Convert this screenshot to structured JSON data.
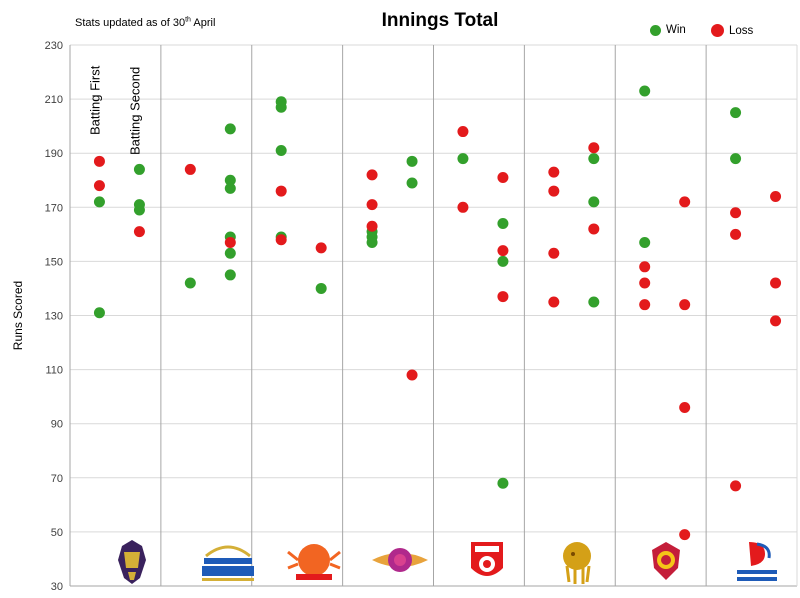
{
  "note": "Stats updated as of 30th April",
  "title": "Innings Total",
  "legend": [
    {
      "label": "Win",
      "color": "#33A02C"
    },
    {
      "label": "Loss",
      "color": "#E31A1C"
    }
  ],
  "column_labels": [
    "Batting First",
    "Batting Second"
  ],
  "chart_data": {
    "type": "scatter",
    "title": "Innings Total",
    "ylabel": "Runs Scored",
    "xlabel": "",
    "ylim": [
      30,
      230
    ],
    "yticks": [
      30,
      50,
      70,
      90,
      110,
      130,
      150,
      170,
      190,
      210,
      230
    ],
    "grid": true,
    "legend_position": "top-right",
    "teams": [
      {
        "logo": "KKR",
        "batting_first": {
          "win": [
            172,
            131
          ],
          "loss": [
            187,
            178
          ]
        },
        "batting_second": {
          "win": [
            184,
            171,
            169
          ],
          "loss": [
            161
          ]
        }
      },
      {
        "logo": "MI",
        "batting_first": {
          "win": [
            142
          ],
          "loss": [
            184
          ]
        },
        "batting_second": {
          "win": [
            199,
            180,
            177,
            159,
            153,
            145
          ],
          "loss": [
            157
          ]
        }
      },
      {
        "logo": "SRH",
        "batting_first": {
          "win": [
            209,
            207,
            191,
            159
          ],
          "loss": [
            176,
            158
          ]
        },
        "batting_second": {
          "win": [
            140
          ],
          "loss": [
            155
          ]
        }
      },
      {
        "logo": "RPS",
        "batting_first": {
          "win": [
            161,
            159,
            157
          ],
          "loss": [
            182,
            171,
            163
          ]
        },
        "batting_second": {
          "win": [
            187,
            179
          ],
          "loss": [
            108
          ]
        }
      },
      {
        "logo": "KXIP",
        "batting_first": {
          "win": [
            188
          ],
          "loss": [
            198,
            170
          ]
        },
        "batting_second": {
          "win": [
            164,
            150,
            68
          ],
          "loss": [
            181,
            154,
            137
          ]
        }
      },
      {
        "logo": "GL",
        "batting_first": {
          "win": [],
          "loss": [
            183,
            176,
            153,
            135
          ]
        },
        "batting_second": {
          "win": [
            188,
            172,
            135
          ],
          "loss": [
            192,
            162
          ]
        }
      },
      {
        "logo": "RCB",
        "batting_first": {
          "win": [
            213,
            157
          ],
          "loss": [
            148,
            142,
            134
          ]
        },
        "batting_second": {
          "win": [],
          "loss": [
            172,
            134,
            96,
            49
          ]
        }
      },
      {
        "logo": "DD",
        "batting_first": {
          "win": [
            205,
            188
          ],
          "loss": [
            168,
            160,
            67
          ]
        },
        "batting_second": {
          "win": [],
          "loss": [
            174,
            142,
            128
          ]
        }
      }
    ]
  }
}
